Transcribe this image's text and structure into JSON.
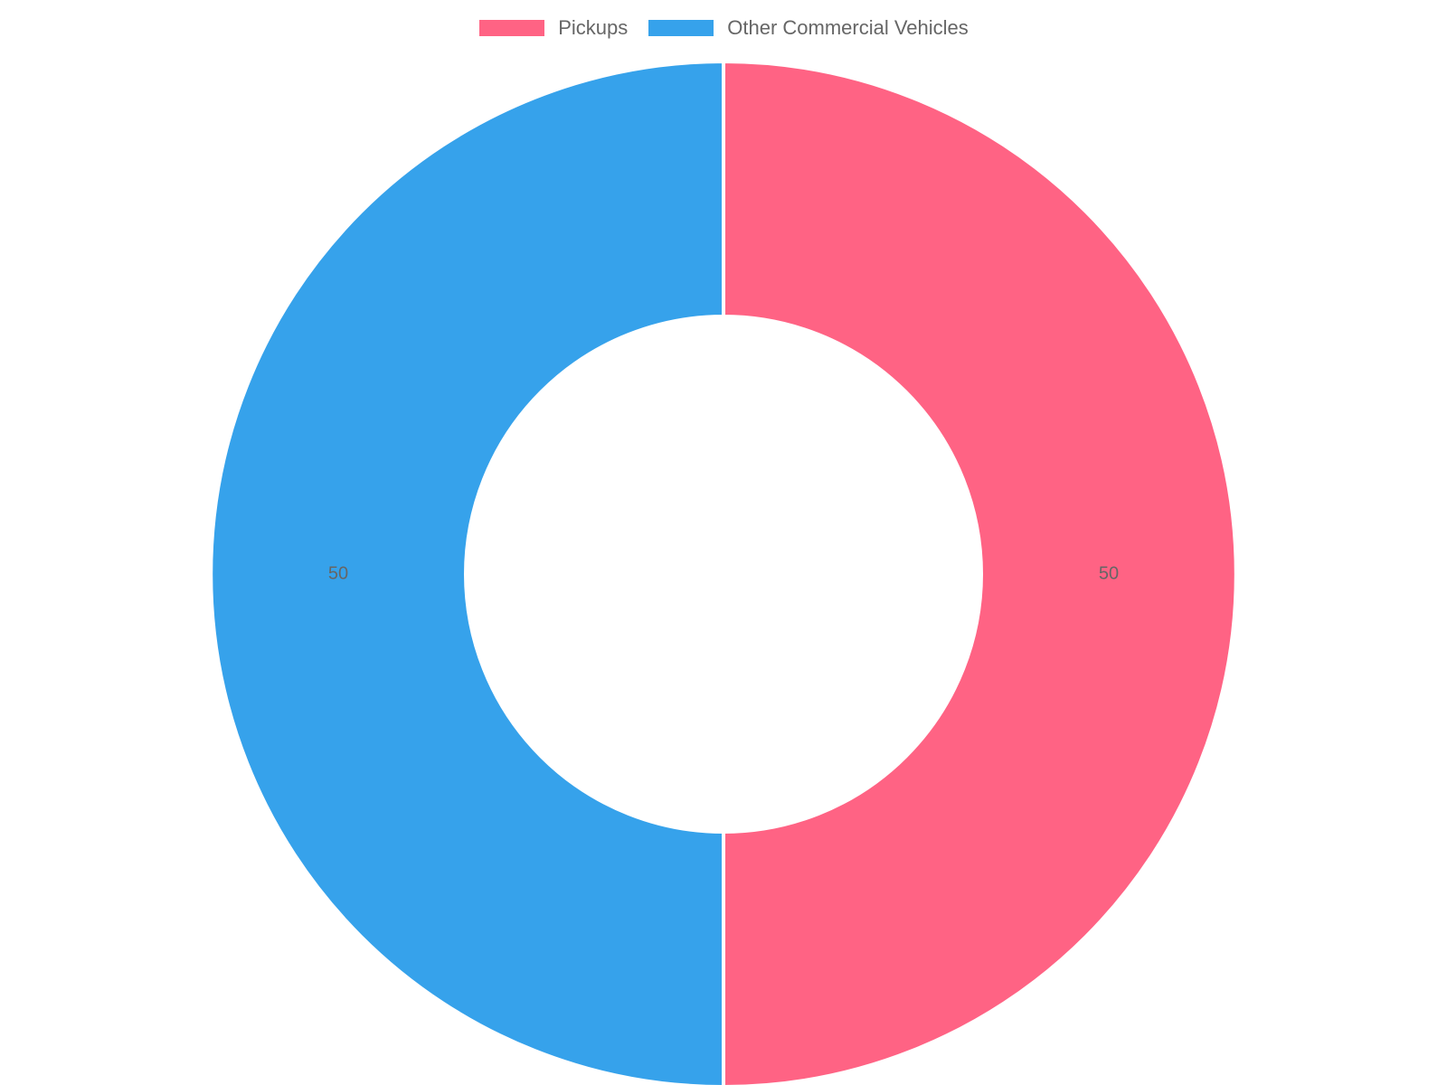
{
  "chart_data": {
    "type": "pie",
    "variant": "doughnut",
    "categories": [
      "Pickups",
      "Other Commercial Vehicles"
    ],
    "values": [
      50,
      50
    ],
    "colors": [
      "#ff6384",
      "#36a2eb"
    ],
    "data_labels": [
      "50",
      "50"
    ],
    "legend_position": "top",
    "title": "",
    "xlabel": "",
    "ylabel": ""
  },
  "legend": {
    "items": [
      {
        "label": "Pickups",
        "color": "#ff6384"
      },
      {
        "label": "Other Commercial Vehicles",
        "color": "#36a2eb"
      }
    ]
  }
}
